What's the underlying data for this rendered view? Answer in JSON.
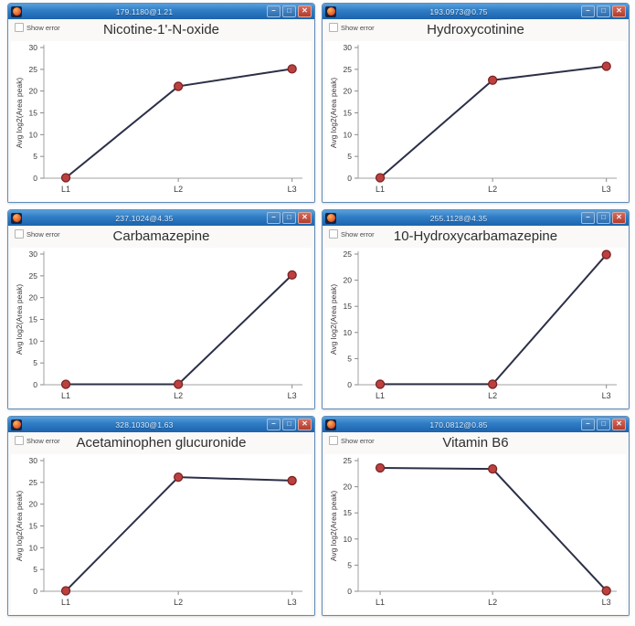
{
  "shared": {
    "show_error_label": "Show error",
    "x_categories": [
      "L1",
      "L2",
      "L3"
    ],
    "ylabel": "Avg log2(Area peak)",
    "window_buttons": {
      "minimize": "–",
      "maximize": "□",
      "close": "✕"
    },
    "colors": {
      "titlebar_blue": "#2f7cc4",
      "series_line": "#2c3047",
      "point_fill": "#bb4141",
      "point_stroke": "#7d2222",
      "axis_gray": "#a0a0a0",
      "icon_orange": "#e2552a"
    }
  },
  "windows": [
    {
      "titlebar_label": "179.1180@1.21"
    },
    {
      "titlebar_label": "193.0973@0.75"
    },
    {
      "titlebar_label": "237.1024@4.35"
    },
    {
      "titlebar_label": "255.1128@4.35"
    },
    {
      "titlebar_label": "328.1030@1.63"
    },
    {
      "titlebar_label": "170.0812@0.85"
    }
  ],
  "chart_data": [
    {
      "type": "line",
      "title": "Nicotine-1'-N-oxide",
      "categories": [
        "L1",
        "L2",
        "L3"
      ],
      "values": [
        0.1,
        21.1,
        25.1
      ],
      "xlabel": "",
      "ylabel": "Avg log2(Area peak)",
      "ylim": [
        0,
        30
      ],
      "grid": false,
      "legend": "none"
    },
    {
      "type": "line",
      "title": "Hydroxycotinine",
      "categories": [
        "L1",
        "L2",
        "L3"
      ],
      "values": [
        0.1,
        22.5,
        25.7
      ],
      "xlabel": "",
      "ylabel": "Avg log2(Area peak)",
      "ylim": [
        0,
        30
      ],
      "grid": false,
      "legend": "none"
    },
    {
      "type": "line",
      "title": "Carbamazepine",
      "categories": [
        "L1",
        "L2",
        "L3"
      ],
      "values": [
        0.1,
        0.1,
        25.2
      ],
      "xlabel": "",
      "ylabel": "Avg log2(Area peak)",
      "ylim": [
        0,
        30
      ],
      "grid": false,
      "legend": "none"
    },
    {
      "type": "line",
      "title": "10-Hydroxycarbamazepine",
      "categories": [
        "L1",
        "L2",
        "L3"
      ],
      "values": [
        0.1,
        0.1,
        24.9
      ],
      "xlabel": "",
      "ylabel": "Avg log2(Area peak)",
      "ylim": [
        0,
        25
      ],
      "grid": false,
      "legend": "none"
    },
    {
      "type": "line",
      "title": "Acetaminophen glucuronide",
      "categories": [
        "L1",
        "L2",
        "L3"
      ],
      "values": [
        0.1,
        26.2,
        25.4
      ],
      "xlabel": "",
      "ylabel": "Avg log2(Area peak)",
      "ylim": [
        0,
        30
      ],
      "grid": false,
      "legend": "none"
    },
    {
      "type": "line",
      "title": "Vitamin B6",
      "categories": [
        "L1",
        "L2",
        "L3"
      ],
      "values": [
        23.6,
        23.4,
        0.1
      ],
      "xlabel": "",
      "ylabel": "Avg log2(Area peak)",
      "ylim": [
        0,
        25
      ],
      "grid": false,
      "legend": "none"
    }
  ]
}
